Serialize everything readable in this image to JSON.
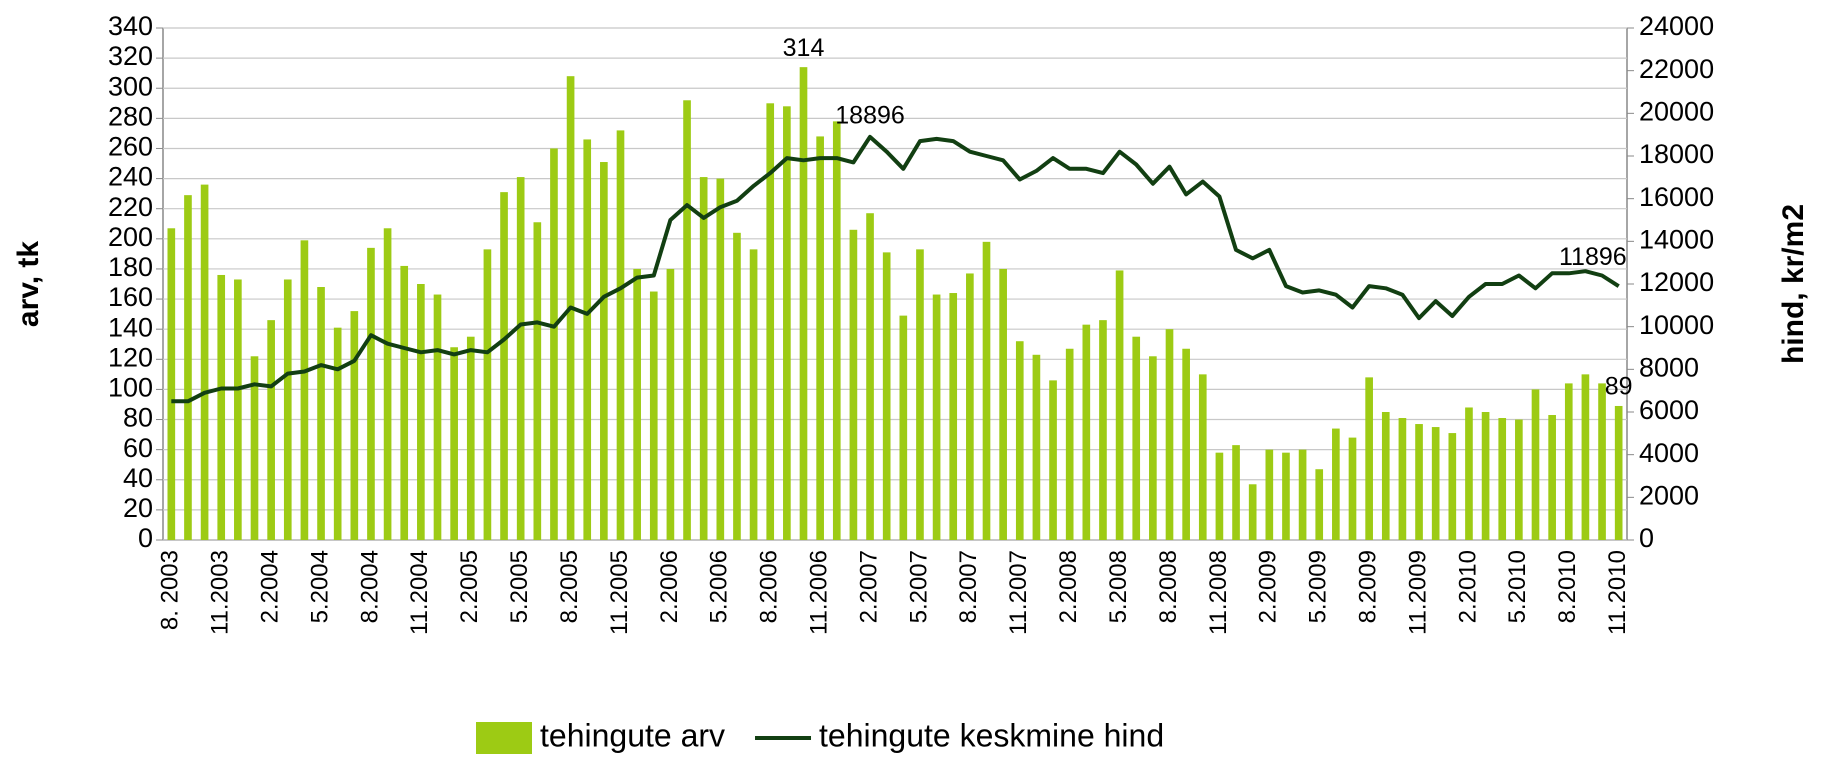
{
  "chart_data": {
    "type": "bar_line",
    "y_label": "arv, tk",
    "y2_label": "hind, kr/m2",
    "categories": [
      "8. 2003",
      null,
      null,
      "11.2003",
      null,
      null,
      "2.2004",
      null,
      null,
      "5.2004",
      null,
      null,
      "8.2004",
      null,
      null,
      "11.2004",
      null,
      null,
      "2.2005",
      null,
      null,
      "5.2005",
      null,
      null,
      "8.2005",
      null,
      null,
      "11.2005",
      null,
      null,
      "2.2006",
      null,
      null,
      "5.2006",
      null,
      null,
      "8.2006",
      null,
      null,
      "11.2006",
      null,
      null,
      "2.2007",
      null,
      null,
      "5.2007",
      null,
      null,
      "8.2007",
      null,
      null,
      "11.2007",
      null,
      null,
      "2.2008",
      null,
      null,
      "5.2008",
      null,
      null,
      "8.2008",
      null,
      null,
      "11.2008",
      null,
      null,
      "2.2009",
      null,
      null,
      "5.2009",
      null,
      null,
      "8.2009",
      null,
      null,
      "11.2009",
      null,
      null,
      "2.2010",
      null,
      null,
      "5.2010",
      null,
      null,
      "8.2010",
      null,
      null,
      "11.2010"
    ],
    "series": [
      {
        "name": "tehingute arv",
        "type": "bar",
        "axis": "y",
        "color": "#9dcb14",
        "values": [
          207,
          229,
          236,
          176,
          173,
          122,
          146,
          173,
          199,
          168,
          141,
          152,
          194,
          207,
          182,
          170,
          163,
          128,
          135,
          193,
          231,
          241,
          211,
          260,
          308,
          266,
          251,
          272,
          180,
          165,
          180,
          292,
          241,
          240,
          204,
          193,
          290,
          288,
          314,
          268,
          278,
          206,
          217,
          191,
          149,
          193,
          163,
          164,
          177,
          198,
          180,
          132,
          123,
          106,
          127,
          143,
          146,
          179,
          135,
          122,
          140,
          127,
          110,
          58,
          63,
          37,
          60,
          58,
          60,
          47,
          74,
          68,
          108,
          85,
          81,
          77,
          75,
          71,
          88,
          85,
          81,
          80,
          100,
          83,
          104,
          110,
          104,
          89
        ],
        "value_labels": [
          null,
          null,
          null,
          null,
          null,
          null,
          null,
          null,
          null,
          null,
          null,
          null,
          null,
          null,
          null,
          null,
          null,
          null,
          null,
          null,
          null,
          null,
          null,
          null,
          null,
          null,
          null,
          null,
          null,
          null,
          null,
          null,
          null,
          null,
          null,
          null,
          null,
          null,
          "314",
          null,
          null,
          null,
          null,
          null,
          null,
          null,
          null,
          null,
          null,
          null,
          null,
          null,
          null,
          null,
          null,
          null,
          null,
          null,
          null,
          null,
          null,
          null,
          null,
          null,
          null,
          null,
          null,
          null,
          null,
          null,
          null,
          null,
          null,
          null,
          null,
          null,
          null,
          null,
          null,
          null,
          null,
          null,
          null,
          null,
          null,
          null,
          null,
          "89"
        ]
      },
      {
        "name": "tehingute keskmine hind",
        "type": "line",
        "axis": "y2",
        "color": "#123f12",
        "values": [
          6500,
          6500,
          6900,
          7100,
          7100,
          7300,
          7200,
          7800,
          7900,
          8200,
          8000,
          8400,
          9600,
          9200,
          9000,
          8800,
          8900,
          8700,
          8900,
          8800,
          9400,
          10100,
          10200,
          10000,
          10900,
          10600,
          11400,
          11800,
          12300,
          12400,
          15000,
          15700,
          15100,
          15600,
          15900,
          16600,
          17200,
          17900,
          17800,
          17900,
          17900,
          17700,
          18896,
          18200,
          17400,
          18700,
          18800,
          18700,
          18200,
          18000,
          17800,
          16900,
          17300,
          17900,
          17400,
          17400,
          17200,
          18200,
          17600,
          16700,
          17500,
          16200,
          16800,
          16100,
          13600,
          13200,
          13600,
          11900,
          11600,
          11700,
          11500,
          10900,
          11900,
          11800,
          11500,
          10400,
          11200,
          10500,
          11400,
          12000,
          12000,
          12400,
          11800,
          12500,
          12500,
          12600,
          12400,
          11896
        ],
        "value_labels": [
          null,
          null,
          null,
          null,
          null,
          null,
          null,
          null,
          null,
          null,
          null,
          null,
          null,
          null,
          null,
          null,
          null,
          null,
          null,
          null,
          null,
          null,
          null,
          null,
          null,
          null,
          null,
          null,
          null,
          null,
          null,
          null,
          null,
          null,
          null,
          null,
          null,
          null,
          null,
          null,
          null,
          null,
          "18896",
          null,
          null,
          null,
          null,
          null,
          null,
          null,
          null,
          null,
          null,
          null,
          null,
          null,
          null,
          null,
          null,
          null,
          null,
          null,
          null,
          null,
          null,
          null,
          null,
          null,
          null,
          null,
          null,
          null,
          null,
          null,
          null,
          null,
          null,
          null,
          null,
          null,
          null,
          null,
          null,
          null,
          null,
          null,
          null,
          "11896"
        ]
      }
    ],
    "ylim": [
      0,
      340
    ],
    "yticks": [
      0,
      20,
      40,
      60,
      80,
      100,
      120,
      140,
      160,
      180,
      200,
      220,
      240,
      260,
      280,
      300,
      320,
      340
    ],
    "y2lim": [
      0,
      24000
    ],
    "y2ticks": [
      0,
      2000,
      4000,
      6000,
      8000,
      10000,
      12000,
      14000,
      16000,
      18000,
      20000,
      22000,
      24000
    ],
    "grid": true,
    "legend": "bottom"
  }
}
